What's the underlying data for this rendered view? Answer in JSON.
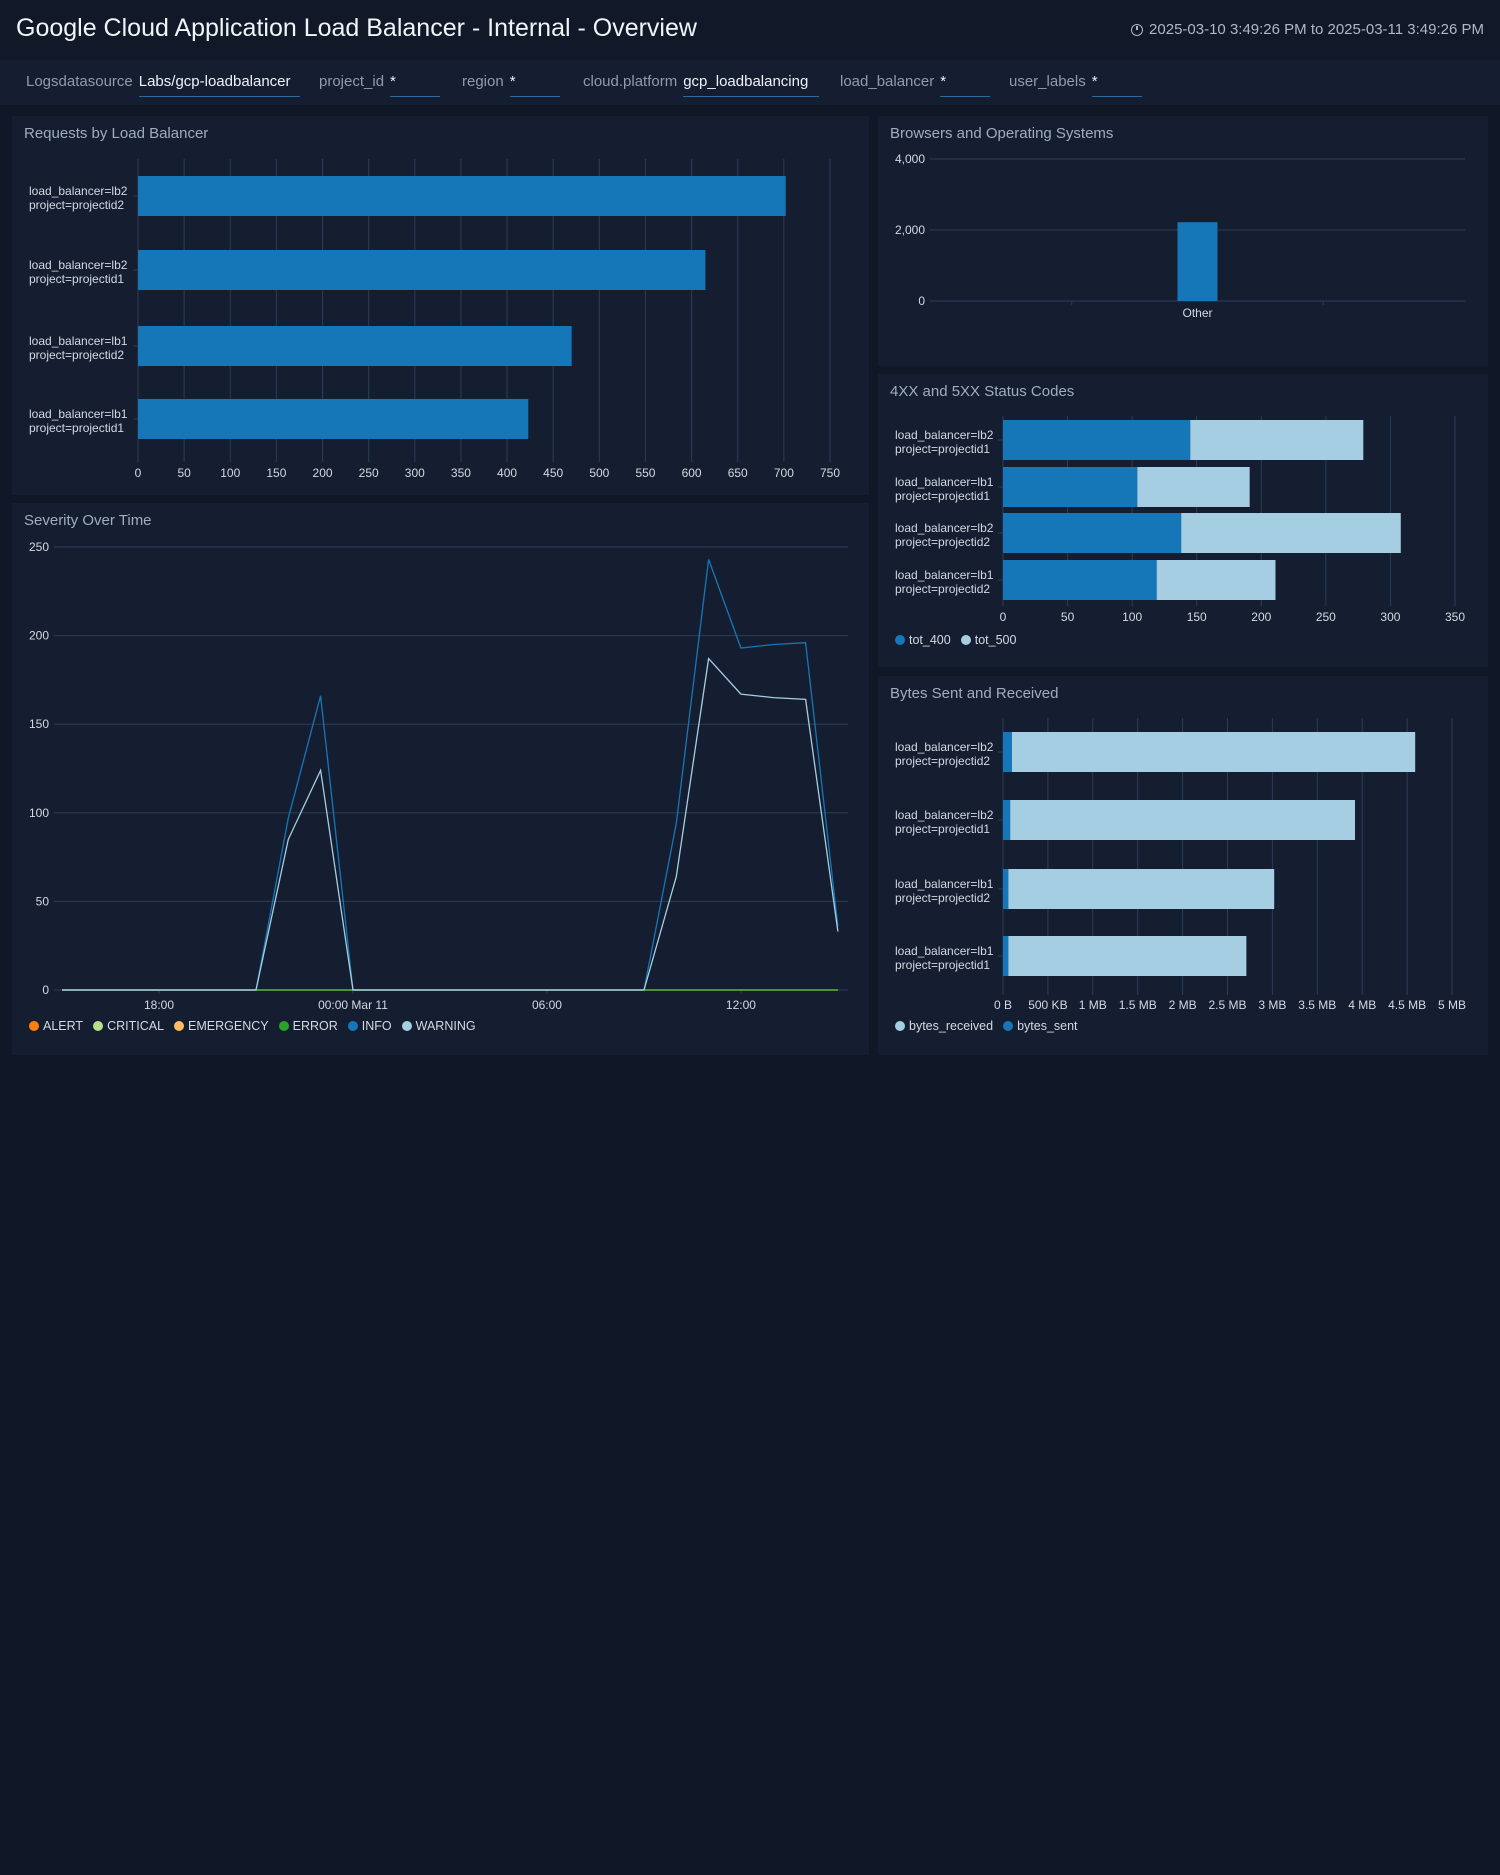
{
  "header": {
    "title": "Google Cloud Application Load Balancer - Internal - Overview",
    "time_range": "2025-03-10 3:49:26 PM to 2025-03-11 3:49:26 PM"
  },
  "filters": [
    {
      "label": "Logsdatasource",
      "value": "Labs/gcp-loadbalancer"
    },
    {
      "label": "project_id",
      "value": "*"
    },
    {
      "label": "region",
      "value": "*"
    },
    {
      "label": "cloud.platform",
      "value": "gcp_loadbalancing"
    },
    {
      "label": "load_balancer",
      "value": "*"
    },
    {
      "label": "user_labels",
      "value": "*"
    }
  ],
  "colors": {
    "dark_blue": "#1677b8",
    "light_blue": "#a6cee3",
    "grid": "#2b3c58"
  },
  "chart_data": [
    {
      "id": "requests",
      "type": "bar",
      "orientation": "horizontal",
      "title": "Requests by Load Balancer",
      "categories": [
        [
          "load_balancer=lb2",
          "project=projectid2"
        ],
        [
          "load_balancer=lb2",
          "project=projectid1"
        ],
        [
          "load_balancer=lb1",
          "project=projectid2"
        ],
        [
          "load_balancer=lb1",
          "project=projectid1"
        ]
      ],
      "series": [
        {
          "name": "requests",
          "values": [
            702,
            615,
            470,
            423
          ],
          "color": "#1677b8"
        }
      ],
      "xlim": [
        0,
        750
      ],
      "xticks": [
        "0",
        "50",
        "100",
        "150",
        "200",
        "250",
        "300",
        "350",
        "400",
        "450",
        "500",
        "550",
        "600",
        "650",
        "700",
        "750"
      ],
      "grid": true
    },
    {
      "id": "browsers",
      "type": "bar",
      "title": "Browsers and Operating Systems",
      "categories": [
        "Other"
      ],
      "values": [
        2220
      ],
      "ylim": [
        0,
        4000
      ],
      "yticks": [
        "0",
        "2,000",
        "4,000"
      ],
      "grid": true
    },
    {
      "id": "status",
      "type": "bar",
      "orientation": "horizontal",
      "stacked": true,
      "title": "4XX and 5XX Status Codes",
      "categories": [
        [
          "load_balancer=lb2",
          "project=projectid1"
        ],
        [
          "load_balancer=lb1",
          "project=projectid1"
        ],
        [
          "load_balancer=lb2",
          "project=projectid2"
        ],
        [
          "load_balancer=lb1",
          "project=projectid2"
        ]
      ],
      "series": [
        {
          "name": "tot_400",
          "values": [
            145,
            104,
            138,
            119
          ],
          "color": "#1677b8"
        },
        {
          "name": "tot_500",
          "values": [
            134,
            87,
            170,
            92
          ],
          "color": "#a6cee3"
        }
      ],
      "xlim": [
        0,
        350
      ],
      "xticks": [
        "0",
        "50",
        "100",
        "150",
        "200",
        "250",
        "300",
        "350"
      ],
      "legend": "bottom-left"
    },
    {
      "id": "bytes",
      "type": "bar",
      "orientation": "horizontal",
      "stacked": true,
      "title": "Bytes Sent and Received",
      "unit": "MB",
      "categories": [
        [
          "load_balancer=lb2",
          "project=projectid2"
        ],
        [
          "load_balancer=lb2",
          "project=projectid1"
        ],
        [
          "load_balancer=lb1",
          "project=projectid2"
        ],
        [
          "load_balancer=lb1",
          "project=projectid1"
        ]
      ],
      "series": [
        {
          "name": "bytes_sent",
          "values": [
            0.1,
            0.08,
            0.06,
            0.06
          ],
          "color": "#1677b8"
        },
        {
          "name": "bytes_received",
          "values": [
            4.49,
            3.84,
            2.96,
            2.65
          ],
          "color": "#a6cee3"
        }
      ],
      "legend_order": [
        "bytes_received",
        "bytes_sent"
      ],
      "xlim": [
        0,
        5
      ],
      "xticks": [
        "0 B",
        "500 KB",
        "1 MB",
        "1.5 MB",
        "2 MB",
        "2.5 MB",
        "3 MB",
        "3.5 MB",
        "4 MB",
        "4.5 MB",
        "5 MB"
      ],
      "legend": "bottom-left"
    },
    {
      "id": "severity",
      "type": "line",
      "title": "Severity Over Time",
      "x_hours": [
        15,
        16,
        17,
        18,
        19,
        20,
        21,
        22,
        23,
        24,
        25,
        26,
        27,
        28,
        29,
        30,
        31,
        32,
        33,
        34,
        35,
        36,
        37,
        38,
        39
      ],
      "series": [
        {
          "name": "ALERT",
          "color": "#ff7f0e",
          "values": [
            0,
            0,
            0,
            0,
            0,
            0,
            0,
            0,
            0,
            0,
            0,
            0,
            0,
            0,
            0,
            0,
            0,
            0,
            0,
            0,
            0,
            0,
            0,
            0,
            0
          ]
        },
        {
          "name": "CRITICAL",
          "color": "#b5e08a",
          "values": [
            0,
            0,
            0,
            0,
            0,
            0,
            0,
            0,
            0,
            0,
            0,
            0,
            0,
            0,
            0,
            0,
            0,
            0,
            0,
            0,
            0,
            0,
            0,
            0,
            0
          ]
        },
        {
          "name": "EMERGENCY",
          "color": "#ffbb66",
          "values": [
            0,
            0,
            0,
            0,
            0,
            0,
            0,
            0,
            0,
            0,
            0,
            0,
            0,
            0,
            0,
            0,
            0,
            0,
            0,
            0,
            0,
            0,
            0,
            0,
            0
          ]
        },
        {
          "name": "ERROR",
          "color": "#2ca02c",
          "values": [
            0,
            0,
            0,
            0,
            0,
            0,
            0,
            0,
            0,
            0,
            0,
            0,
            0,
            0,
            0,
            0,
            0,
            0,
            0,
            0,
            0,
            0,
            0,
            0,
            0
          ]
        },
        {
          "name": "INFO",
          "color": "#1677b8",
          "values": [
            0,
            0,
            0,
            0,
            0,
            0,
            0,
            97,
            166,
            0,
            0,
            0,
            0,
            0,
            0,
            0,
            0,
            0,
            0,
            94,
            243,
            193,
            195,
            196,
            36
          ]
        },
        {
          "name": "WARNING",
          "color": "#a6cee3",
          "values": [
            0,
            0,
            0,
            0,
            0,
            0,
            0,
            85,
            124,
            0,
            0,
            0,
            0,
            0,
            0,
            0,
            0,
            0,
            0,
            64,
            187,
            167,
            165,
            164,
            33
          ]
        }
      ],
      "ylim": [
        0,
        250
      ],
      "yticks": [
        "0",
        "50",
        "100",
        "150",
        "200",
        "250"
      ],
      "xticks": [
        {
          "hour": 18,
          "label": "18:00"
        },
        {
          "hour": 24,
          "label": "00:00 Mar 11"
        },
        {
          "hour": 30,
          "label": "06:00"
        },
        {
          "hour": 36,
          "label": "12:00"
        }
      ],
      "legend": "bottom-left",
      "grid": true
    }
  ]
}
